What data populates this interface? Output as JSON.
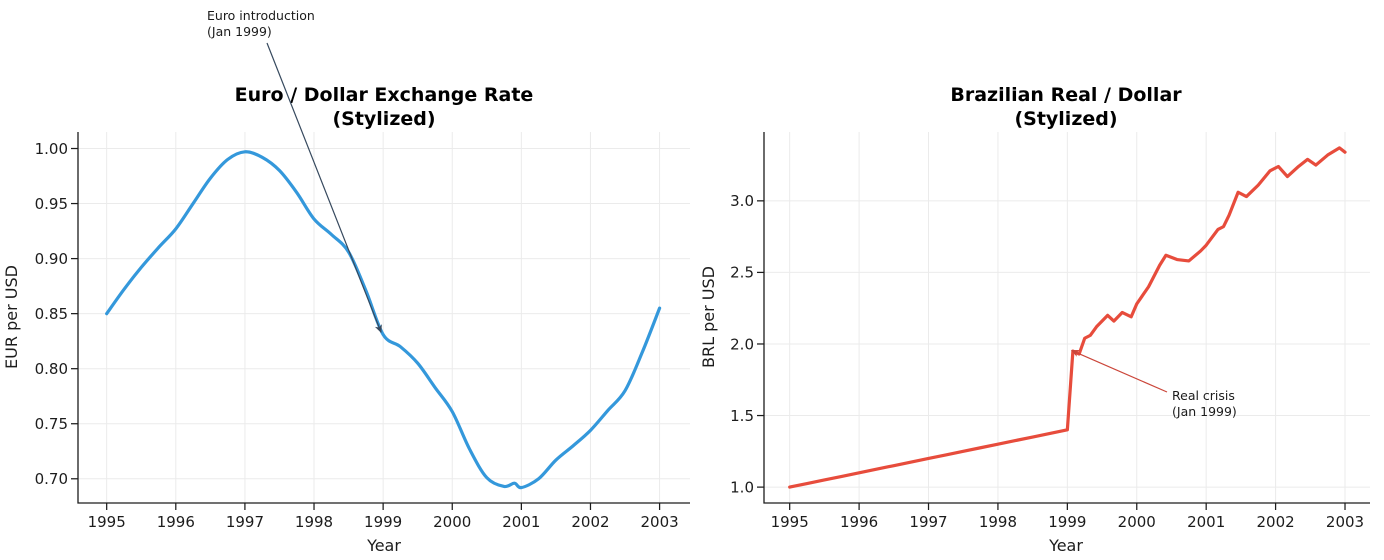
{
  "chart_data": [
    {
      "type": "line",
      "title": "Euro / Dollar Exchange Rate",
      "subtitle": "(Stylized)",
      "xlabel": "Year",
      "ylabel": "EUR per USD",
      "line_color": "#3498db",
      "grid": true,
      "smooth": true,
      "xlim": [
        1994.585,
        2003.44
      ],
      "ylim": [
        0.678,
        1.015
      ],
      "x_tick_labels": [
        "1995",
        "1996",
        "1997",
        "1998",
        "1999",
        "2000",
        "2001",
        "2002",
        "2003"
      ],
      "x_tick_values": [
        1995,
        1996,
        1997,
        1998,
        1999,
        2000,
        2001,
        2002,
        2003
      ],
      "y_tick_labels": [
        "0.70",
        "0.75",
        "0.80",
        "0.85",
        "0.90",
        "0.95",
        "1.00"
      ],
      "y_tick_values": [
        0.7,
        0.75,
        0.8,
        0.85,
        0.9,
        0.95,
        1.0
      ],
      "x": [
        1995.0,
        1995.25,
        1995.5,
        1995.75,
        1996.0,
        1996.25,
        1996.5,
        1996.75,
        1997.0,
        1997.25,
        1997.5,
        1997.75,
        1998.0,
        1998.25,
        1998.5,
        1998.75,
        1999.0,
        1999.25,
        1999.5,
        1999.75,
        2000.0,
        2000.25,
        2000.5,
        2000.75,
        2000.9,
        2001.0,
        2001.25,
        2001.5,
        2001.75,
        2002.0,
        2002.25,
        2002.5,
        2002.75,
        2003.0
      ],
      "y": [
        0.85,
        0.872,
        0.892,
        0.91,
        0.927,
        0.95,
        0.973,
        0.99,
        0.997,
        0.992,
        0.98,
        0.96,
        0.936,
        0.922,
        0.906,
        0.871,
        0.831,
        0.82,
        0.805,
        0.783,
        0.761,
        0.727,
        0.701,
        0.693,
        0.696,
        0.692,
        0.7,
        0.717,
        0.73,
        0.744,
        0.762,
        0.78,
        0.815,
        0.855
      ],
      "annotation": {
        "lines": [
          "Euro introduction",
          "(Jan 1999)"
        ],
        "color": "#36495e",
        "target_x": 1998.97,
        "target_y": 0.833
      }
    },
    {
      "type": "line",
      "title": "Brazilian Real / Dollar",
      "subtitle": "(Stylized)",
      "xlabel": "Year",
      "ylabel": "BRL per USD",
      "line_color": "#e74c3c",
      "grid": true,
      "smooth": false,
      "xlim": [
        1994.63,
        2003.36
      ],
      "ylim": [
        0.889,
        3.481
      ],
      "x_tick_labels": [
        "1995",
        "1996",
        "1997",
        "1998",
        "1999",
        "2000",
        "2001",
        "2002",
        "2003"
      ],
      "x_tick_values": [
        1995,
        1996,
        1997,
        1998,
        1999,
        2000,
        2001,
        2002,
        2003
      ],
      "y_tick_labels": [
        "1.0",
        "1.5",
        "2.0",
        "2.5",
        "3.0"
      ],
      "y_tick_values": [
        1.0,
        1.5,
        2.0,
        2.5,
        3.0
      ],
      "x": [
        1995.0,
        1995.25,
        1995.5,
        1995.75,
        1996.0,
        1996.25,
        1996.5,
        1996.75,
        1997.0,
        1997.25,
        1997.5,
        1997.75,
        1998.0,
        1998.25,
        1998.5,
        1998.75,
        1999.0,
        1999.08,
        1999.17,
        1999.25,
        1999.33,
        1999.42,
        1999.58,
        1999.67,
        1999.79,
        1999.92,
        2000.0,
        2000.17,
        2000.33,
        2000.42,
        2000.58,
        2000.75,
        2000.92,
        2001.0,
        2001.17,
        2001.25,
        2001.33,
        2001.46,
        2001.58,
        2001.75,
        2001.92,
        2002.04,
        2002.17,
        2002.33,
        2002.46,
        2002.58,
        2002.75,
        2002.92,
        2003.0
      ],
      "y": [
        1.0,
        1.025,
        1.05,
        1.075,
        1.1,
        1.125,
        1.15,
        1.175,
        1.2,
        1.225,
        1.25,
        1.275,
        1.3,
        1.325,
        1.35,
        1.375,
        1.4,
        1.95,
        1.93,
        2.04,
        2.06,
        2.12,
        2.2,
        2.16,
        2.22,
        2.19,
        2.28,
        2.4,
        2.55,
        2.62,
        2.59,
        2.58,
        2.65,
        2.69,
        2.8,
        2.82,
        2.9,
        3.06,
        3.03,
        3.11,
        3.21,
        3.24,
        3.17,
        3.24,
        3.29,
        3.25,
        3.32,
        3.37,
        3.34
      ],
      "annotation": {
        "lines": [
          "Real crisis",
          "(Jan 1999)"
        ],
        "color": "#cb463a",
        "target_x": 1999.06,
        "target_y": 1.955
      }
    }
  ]
}
